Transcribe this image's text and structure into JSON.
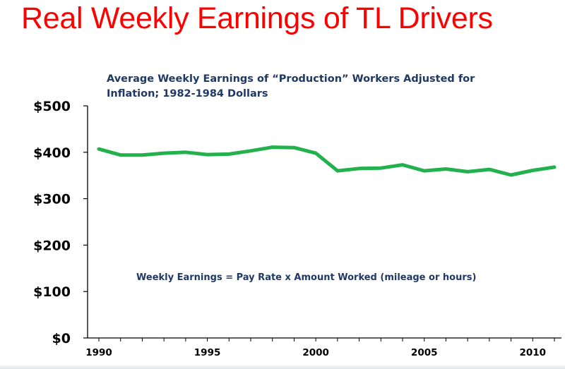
{
  "slide": {
    "title": "Real Weekly Earnings of TL Drivers"
  },
  "chart_data": {
    "type": "line",
    "title": "Average Weekly Earnings of “Production” Workers Adjusted for Inflation; 1982-1984 Dollars",
    "annotation": "Weekly Earnings = Pay Rate x Amount Worked (mileage or hours)",
    "xlabel": "",
    "ylabel": "",
    "xlim": [
      1990,
      2011
    ],
    "ylim": [
      0,
      500
    ],
    "x_ticks": [
      1990,
      1995,
      2000,
      2005,
      2010
    ],
    "x_tick_labels": [
      "1990",
      "1995",
      "2000",
      "2005",
      "2010"
    ],
    "y_ticks": [
      0,
      100,
      200,
      300,
      400,
      500
    ],
    "y_tick_labels": [
      "$0",
      "$100",
      "$200",
      "$300",
      "$400",
      "$500"
    ],
    "grid": false,
    "series": [
      {
        "color": "#22b14c",
        "x": [
          1990,
          1991,
          1992,
          1993,
          1994,
          1995,
          1996,
          1997,
          1998,
          1999,
          2000,
          2001,
          2002,
          2003,
          2004,
          2005,
          2006,
          2007,
          2008,
          2009,
          2010,
          2011
        ],
        "values": [
          407,
          394,
          394,
          398,
          400,
          395,
          396,
          403,
          411,
          410,
          398,
          360,
          365,
          366,
          373,
          360,
          364,
          358,
          363,
          351,
          361,
          368
        ]
      }
    ]
  }
}
